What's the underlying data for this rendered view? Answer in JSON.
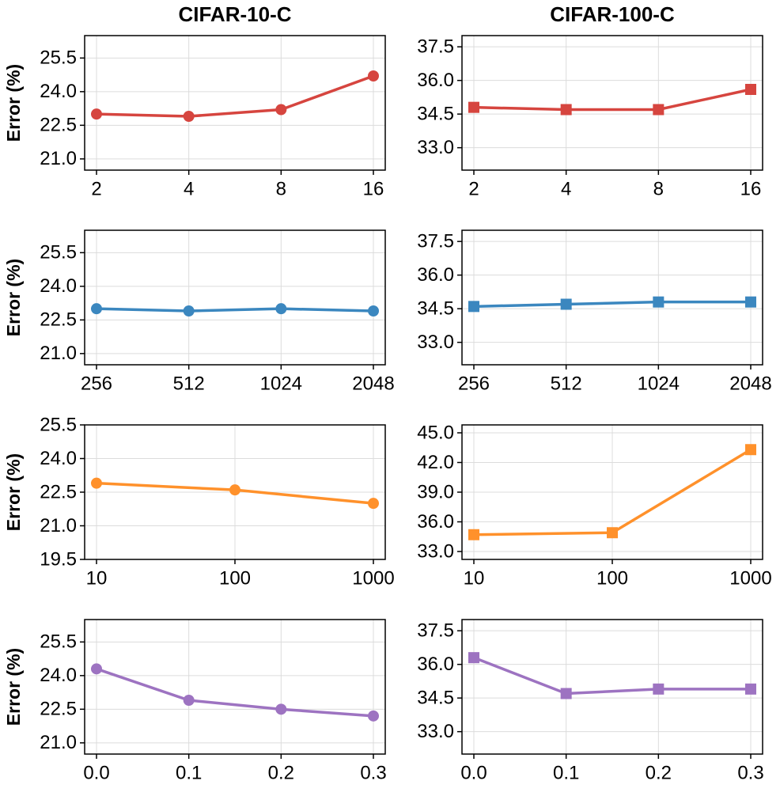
{
  "chart_data": [
    {
      "type": "line",
      "title": "CIFAR-10-C",
      "y_label": "Error (%)",
      "marker": "circle",
      "grid": true,
      "categories": [
        "2",
        "4",
        "8",
        "16"
      ],
      "series": [
        {
          "color": "#d6453f",
          "values": [
            23.0,
            22.9,
            23.2,
            24.7
          ]
        }
      ],
      "ylim": [
        20.5,
        26.5
      ],
      "yticks": [
        {
          "value": 21,
          "label": "21.0"
        },
        22.5,
        {
          "value": 24,
          "label": "24.0"
        },
        25.5
      ]
    },
    {
      "type": "line",
      "title": "CIFAR-100-C",
      "marker": "square",
      "grid": true,
      "categories": [
        "2",
        "4",
        "8",
        "16"
      ],
      "series": [
        {
          "color": "#d6453f",
          "values": [
            34.8,
            34.7,
            34.7,
            35.6
          ]
        }
      ],
      "ylim": [
        32.0,
        38.0
      ],
      "yticks": [
        {
          "value": 33,
          "label": "33.0"
        },
        34.5,
        {
          "value": 36,
          "label": "36.0"
        },
        37.5
      ]
    },
    {
      "type": "line",
      "y_label": "Error (%)",
      "marker": "circle",
      "grid": true,
      "categories": [
        "256",
        "512",
        "1024",
        "2048"
      ],
      "series": [
        {
          "color": "#3b87bf",
          "values": [
            23.0,
            22.9,
            23.0,
            22.9
          ]
        }
      ],
      "ylim": [
        20.5,
        26.5
      ],
      "yticks": [
        {
          "value": 21,
          "label": "21.0"
        },
        22.5,
        {
          "value": 24,
          "label": "24.0"
        },
        25.5
      ]
    },
    {
      "type": "line",
      "marker": "square",
      "grid": true,
      "categories": [
        "256",
        "512",
        "1024",
        "2048"
      ],
      "series": [
        {
          "color": "#3b87bf",
          "values": [
            34.6,
            34.7,
            34.8,
            34.8
          ]
        }
      ],
      "ylim": [
        32.0,
        38.0
      ],
      "yticks": [
        {
          "value": 33,
          "label": "33.0"
        },
        34.5,
        {
          "value": 36,
          "label": "36.0"
        },
        37.5
      ]
    },
    {
      "type": "line",
      "y_label": "Error (%)",
      "marker": "circle",
      "grid": true,
      "categories": [
        "10",
        "100",
        "1000"
      ],
      "series": [
        {
          "color": "#ff912b",
          "values": [
            22.9,
            22.6,
            22.0
          ]
        }
      ],
      "ylim": [
        19.5,
        25.5
      ],
      "yticks": [
        19.5,
        {
          "value": 21,
          "label": "21.0"
        },
        22.5,
        {
          "value": 24,
          "label": "24.0"
        },
        25.5
      ]
    },
    {
      "type": "line",
      "marker": "square",
      "grid": true,
      "categories": [
        "10",
        "100",
        "1000"
      ],
      "series": [
        {
          "color": "#ff912b",
          "values": [
            34.7,
            34.9,
            43.3
          ]
        }
      ],
      "ylim": [
        32.2,
        45.8
      ],
      "yticks": [
        {
          "value": 33,
          "label": "33.0"
        },
        {
          "value": 36,
          "label": "36.0"
        },
        {
          "value": 39,
          "label": "39.0"
        },
        {
          "value": 42,
          "label": "42.0"
        },
        {
          "value": 45,
          "label": "45.0"
        }
      ]
    },
    {
      "type": "line",
      "y_label": "Error (%)",
      "marker": "circle",
      "grid": true,
      "categories": [
        "0.0",
        "0.1",
        "0.2",
        "0.3"
      ],
      "series": [
        {
          "color": "#9d73c1",
          "values": [
            24.3,
            22.9,
            22.5,
            22.2
          ]
        }
      ],
      "ylim": [
        20.5,
        26.5
      ],
      "yticks": [
        {
          "value": 21,
          "label": "21.0"
        },
        22.5,
        {
          "value": 24,
          "label": "24.0"
        },
        25.5
      ]
    },
    {
      "type": "line",
      "marker": "square",
      "grid": true,
      "categories": [
        "0.0",
        "0.1",
        "0.2",
        "0.3"
      ],
      "series": [
        {
          "color": "#9d73c1",
          "values": [
            36.3,
            34.7,
            34.9,
            34.9
          ]
        }
      ],
      "ylim": [
        32.0,
        38.0
      ],
      "yticks": [
        {
          "value": 33,
          "label": "33.0"
        },
        34.5,
        {
          "value": 36,
          "label": "36.0"
        },
        37.5
      ]
    }
  ]
}
